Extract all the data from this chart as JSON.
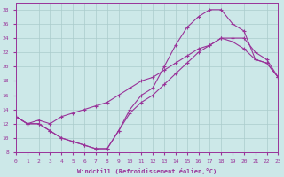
{
  "xlabel": "Windchill (Refroidissement éolien,°C)",
  "bg_color": "#cce8e8",
  "grid_color": "#aacccc",
  "line_color": "#993399",
  "xlim": [
    0,
    23
  ],
  "ylim": [
    8,
    29
  ],
  "xticks": [
    0,
    1,
    2,
    3,
    4,
    5,
    6,
    7,
    8,
    9,
    10,
    11,
    12,
    13,
    14,
    15,
    16,
    17,
    18,
    19,
    20,
    21,
    22,
    23
  ],
  "yticks": [
    8,
    10,
    12,
    14,
    16,
    18,
    20,
    22,
    24,
    26,
    28
  ],
  "curve1_x": [
    0,
    1,
    2,
    3,
    4,
    5,
    6,
    7,
    8,
    9,
    10,
    11,
    12,
    13,
    14,
    15,
    16,
    17,
    18,
    19,
    20,
    21,
    22,
    23
  ],
  "curve1_y": [
    13,
    12,
    12,
    11,
    10,
    9.5,
    9,
    8.5,
    8.5,
    11,
    14,
    16,
    17,
    20,
    23,
    25.5,
    27,
    28,
    28,
    26,
    25,
    21,
    20.5,
    18.5
  ],
  "curve2_x": [
    0,
    1,
    2,
    3,
    4,
    5,
    6,
    7,
    8,
    9,
    10,
    11,
    12,
    13,
    14,
    15,
    16,
    17,
    18,
    19,
    20,
    21,
    22,
    23
  ],
  "curve2_y": [
    13.0,
    12.0,
    12.5,
    12.0,
    13.0,
    13.5,
    14.0,
    14.5,
    15.0,
    16.0,
    17.0,
    18.0,
    18.5,
    19.5,
    20.5,
    21.5,
    22.5,
    23.0,
    24.0,
    24.0,
    24.0,
    22.0,
    21.0,
    18.5
  ],
  "curve3_x": [
    0,
    1,
    2,
    3,
    4,
    5,
    6,
    7,
    8,
    9,
    10,
    11,
    12,
    13,
    14,
    15,
    16,
    17,
    18,
    19,
    20,
    21,
    22,
    23
  ],
  "curve3_y": [
    13,
    12,
    12,
    11,
    10,
    9.5,
    9,
    8.5,
    8.5,
    11,
    13.5,
    15,
    16,
    17.5,
    19,
    20.5,
    22,
    23,
    24,
    23.5,
    22.5,
    21,
    20.5,
    18.5
  ]
}
